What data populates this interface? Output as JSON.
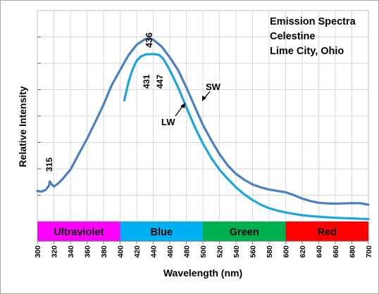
{
  "chart_data": {
    "type": "line",
    "title_lines": [
      "Emission Spectra",
      "Celestine",
      "Lime City, Ohio"
    ],
    "xlabel": "Wavelength (nm)",
    "ylabel": "Relative Intensity",
    "xlim": [
      300,
      700
    ],
    "ylim": [
      0,
      100
    ],
    "x_ticks": [
      300,
      320,
      340,
      360,
      380,
      400,
      420,
      440,
      460,
      480,
      500,
      520,
      540,
      560,
      580,
      600,
      620,
      640,
      660,
      680,
      700
    ],
    "grid": true,
    "series": [
      {
        "name": "SW",
        "color": "#4a7fc1",
        "x": [
          300,
          305,
          310,
          314,
          315,
          317,
          320,
          325,
          330,
          340,
          350,
          360,
          370,
          380,
          390,
          400,
          410,
          420,
          430,
          436,
          440,
          450,
          460,
          470,
          480,
          490,
          500,
          510,
          520,
          530,
          540,
          550,
          560,
          570,
          580,
          590,
          600,
          610,
          620,
          630,
          640,
          650,
          660,
          670,
          680,
          690,
          700
        ],
        "y": [
          14.5,
          14.2,
          15.0,
          17.0,
          19.0,
          17.8,
          16.6,
          18.0,
          20.0,
          24.6,
          32.0,
          39.2,
          47.2,
          55.4,
          64.8,
          71.8,
          78.8,
          83.8,
          86.4,
          86.8,
          86.2,
          83.0,
          77.8,
          71.8,
          63.6,
          54.6,
          45.8,
          38.6,
          32.0,
          26.6,
          22.6,
          19.8,
          17.6,
          16.2,
          15.2,
          14.5,
          13.9,
          12.5,
          10.9,
          9.7,
          8.9,
          8.6,
          8.5,
          8.6,
          8.7,
          8.7,
          8.0
        ]
      },
      {
        "name": "LW",
        "color": "#1ca6de",
        "x": [
          405,
          410,
          415,
          420,
          425,
          431,
          440,
          447,
          452,
          460,
          470,
          480,
          490,
          500,
          510,
          520,
          530,
          540,
          550,
          560,
          570,
          580,
          590,
          600,
          610,
          620,
          630,
          640,
          650,
          660,
          670,
          680,
          690,
          700
        ],
        "y": [
          57.4,
          66.0,
          72.0,
          76.2,
          78.2,
          79.2,
          79.4,
          79.0,
          77.2,
          71.8,
          63.6,
          54.2,
          45.0,
          37.0,
          30.2,
          24.6,
          20.2,
          16.2,
          12.9,
          10.2,
          8.0,
          6.3,
          5.2,
          4.3,
          3.6,
          3.0,
          2.6,
          2.3,
          2.0,
          1.8,
          1.6,
          1.5,
          1.3,
          1.2
        ]
      }
    ],
    "annotations": {
      "peak_sw": "436",
      "peak_lw_1": "431",
      "peak_lw_2": "447",
      "uv_peak": "315",
      "sw_label": "SW",
      "lw_label": "LW"
    },
    "spectrum_bands": [
      {
        "label": "Ultraviolet",
        "from": 300,
        "to": 400,
        "color": "#ff00ff"
      },
      {
        "label": "Blue",
        "from": 400,
        "to": 500,
        "color": "#00b0f0"
      },
      {
        "label": "Green",
        "from": 500,
        "to": 600,
        "color": "#00b050"
      },
      {
        "label": "Red",
        "from": 600,
        "to": 700,
        "color": "#ff0000"
      }
    ]
  }
}
